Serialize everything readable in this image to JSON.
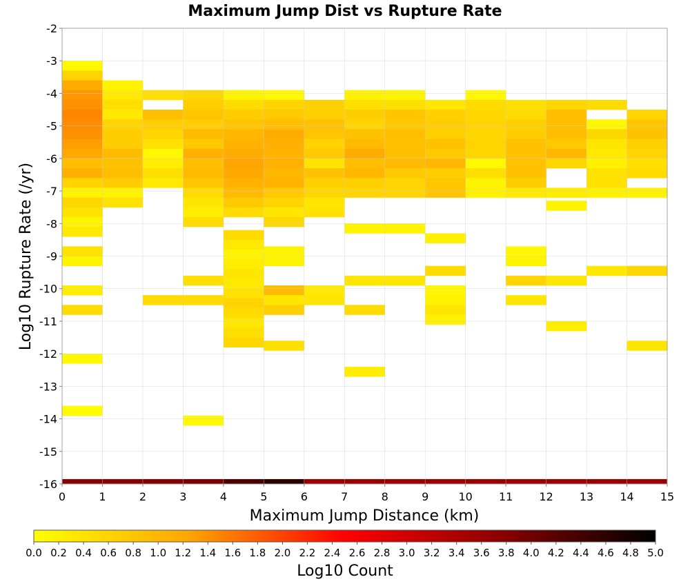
{
  "chart_data": {
    "type": "heatmap",
    "title": "Maximum Jump Dist vs Rupture Rate",
    "xlabel": "Maximum Jump Distance (km)",
    "ylabel": "Log10 Rupture Rate (/yr)",
    "colorbar_label": "Log10 Count",
    "xlim": [
      0,
      15
    ],
    "ylim": [
      -16,
      -2
    ],
    "x_ticks": [
      "0",
      "1",
      "2",
      "3",
      "4",
      "5",
      "6",
      "7",
      "8",
      "9",
      "10",
      "11",
      "12",
      "13",
      "14",
      "15"
    ],
    "y_ticks": [
      "-2",
      "-3",
      "-4",
      "-5",
      "-6",
      "-7",
      "-8",
      "-9",
      "-10",
      "-11",
      "-12",
      "-13",
      "-14",
      "-15",
      "-16"
    ],
    "colorbar_range": [
      0,
      5
    ],
    "colorbar_ticks": [
      "0.0",
      "0.2",
      "0.4",
      "0.6",
      "0.8",
      "1.0",
      "1.2",
      "1.4",
      "1.6",
      "1.8",
      "2.0",
      "2.2",
      "2.4",
      "2.6",
      "2.8",
      "3.0",
      "3.2",
      "3.4",
      "3.6",
      "3.8",
      "4.0",
      "4.2",
      "4.4",
      "4.6",
      "4.8",
      "5.0"
    ],
    "grid": true,
    "colormap": [
      "#ffff00",
      "#ffa500",
      "#ff0000",
      "#8b0000",
      "#000000"
    ],
    "bin_width_x": 1,
    "bin_height_y": 0.3,
    "cells": [
      {
        "x0": 0,
        "y0": -3.3,
        "v": 0.1
      },
      {
        "x0": 0,
        "y0": -3.6,
        "v": 0.6
      },
      {
        "x0": 0,
        "y0": -3.9,
        "v": 1.15
      },
      {
        "x0": 0,
        "y0": -4.2,
        "v": 1.35
      },
      {
        "x0": 0,
        "y0": -4.5,
        "v": 1.4
      },
      {
        "x0": 0,
        "y0": -4.8,
        "v": 1.5
      },
      {
        "x0": 0,
        "y0": -5.1,
        "v": 1.45
      },
      {
        "x0": 0,
        "y0": -5.4,
        "v": 1.4
      },
      {
        "x0": 0,
        "y0": -5.7,
        "v": 1.3
      },
      {
        "x0": 0,
        "y0": -6.0,
        "v": 1.2
      },
      {
        "x0": 0,
        "y0": -6.3,
        "v": 0.9
      },
      {
        "x0": 0,
        "y0": -6.6,
        "v": 1.1
      },
      {
        "x0": 0,
        "y0": -6.9,
        "v": 0.6
      },
      {
        "x0": 0,
        "y0": -7.2,
        "v": 0.15
      },
      {
        "x0": 0,
        "y0": -7.5,
        "v": 0.55
      },
      {
        "x0": 0,
        "y0": -7.8,
        "v": 0.4
      },
      {
        "x0": 0,
        "y0": -8.1,
        "v": 0.15
      },
      {
        "x0": 0,
        "y0": -8.4,
        "v": 0.3
      },
      {
        "x0": 0,
        "y0": -9.0,
        "v": 0.4
      },
      {
        "x0": 0,
        "y0": -9.3,
        "v": 0.15
      },
      {
        "x0": 0,
        "y0": -10.2,
        "v": 0.25
      },
      {
        "x0": 0,
        "y0": -10.8,
        "v": 0.5
      },
      {
        "x0": 0,
        "y0": -12.3,
        "v": 0.1
      },
      {
        "x0": 0,
        "y0": -13.9,
        "v": 0.05
      },
      {
        "x0": 1,
        "y0": -3.9,
        "v": 0.15
      },
      {
        "x0": 1,
        "y0": -4.2,
        "v": 0.3
      },
      {
        "x0": 1,
        "y0": -4.5,
        "v": 0.45
      },
      {
        "x0": 1,
        "y0": -4.8,
        "v": 0.3
      },
      {
        "x0": 1,
        "y0": -5.1,
        "v": 0.6
      },
      {
        "x0": 1,
        "y0": -5.4,
        "v": 0.7
      },
      {
        "x0": 1,
        "y0": -5.7,
        "v": 0.7
      },
      {
        "x0": 1,
        "y0": -6.0,
        "v": 0.95
      },
      {
        "x0": 1,
        "y0": -6.3,
        "v": 0.85
      },
      {
        "x0": 1,
        "y0": -6.6,
        "v": 0.9
      },
      {
        "x0": 1,
        "y0": -6.9,
        "v": 0.7
      },
      {
        "x0": 1,
        "y0": -7.2,
        "v": 0.15
      },
      {
        "x0": 1,
        "y0": -7.5,
        "v": 0.4
      },
      {
        "x0": 2,
        "y0": -4.2,
        "v": 0.45
      },
      {
        "x0": 2,
        "y0": -4.8,
        "v": 0.9
      },
      {
        "x0": 2,
        "y0": -5.1,
        "v": 0.7
      },
      {
        "x0": 2,
        "y0": -5.4,
        "v": 0.6
      },
      {
        "x0": 2,
        "y0": -5.7,
        "v": 0.4
      },
      {
        "x0": 2,
        "y0": -6.0,
        "v": 0.1
      },
      {
        "x0": 2,
        "y0": -6.3,
        "v": 0.25
      },
      {
        "x0": 2,
        "y0": -6.6,
        "v": 0.45
      },
      {
        "x0": 2,
        "y0": -6.9,
        "v": 0.3
      },
      {
        "x0": 2,
        "y0": -10.5,
        "v": 0.5
      },
      {
        "x0": 3,
        "y0": -4.2,
        "v": 0.55
      },
      {
        "x0": 3,
        "y0": -4.5,
        "v": 0.7
      },
      {
        "x0": 3,
        "y0": -4.8,
        "v": 0.8
      },
      {
        "x0": 3,
        "y0": -5.1,
        "v": 0.7
      },
      {
        "x0": 3,
        "y0": -5.4,
        "v": 0.95
      },
      {
        "x0": 3,
        "y0": -5.7,
        "v": 0.75
      },
      {
        "x0": 3,
        "y0": -6.0,
        "v": 1.1
      },
      {
        "x0": 3,
        "y0": -6.3,
        "v": 0.9
      },
      {
        "x0": 3,
        "y0": -6.6,
        "v": 0.95
      },
      {
        "x0": 3,
        "y0": -6.9,
        "v": 0.8
      },
      {
        "x0": 3,
        "y0": -7.2,
        "v": 0.5
      },
      {
        "x0": 3,
        "y0": -7.5,
        "v": 0.35
      },
      {
        "x0": 3,
        "y0": -7.8,
        "v": 0.25
      },
      {
        "x0": 3,
        "y0": -8.1,
        "v": 0.5
      },
      {
        "x0": 3,
        "y0": -9.9,
        "v": 0.45
      },
      {
        "x0": 3,
        "y0": -10.5,
        "v": 0.5
      },
      {
        "x0": 3,
        "y0": -14.2,
        "v": 0.1
      },
      {
        "x0": 4,
        "y0": -4.2,
        "v": 0.15
      },
      {
        "x0": 4,
        "y0": -4.5,
        "v": 0.5
      },
      {
        "x0": 4,
        "y0": -4.8,
        "v": 0.7
      },
      {
        "x0": 4,
        "y0": -5.1,
        "v": 0.8
      },
      {
        "x0": 4,
        "y0": -5.4,
        "v": 1.0
      },
      {
        "x0": 4,
        "y0": -5.7,
        "v": 1.05
      },
      {
        "x0": 4,
        "y0": -6.0,
        "v": 1.15
      },
      {
        "x0": 4,
        "y0": -6.3,
        "v": 1.25
      },
      {
        "x0": 4,
        "y0": -6.6,
        "v": 1.2
      },
      {
        "x0": 4,
        "y0": -6.9,
        "v": 1.05
      },
      {
        "x0": 4,
        "y0": -7.2,
        "v": 0.95
      },
      {
        "x0": 4,
        "y0": -7.5,
        "v": 0.75
      },
      {
        "x0": 4,
        "y0": -7.8,
        "v": 0.5
      },
      {
        "x0": 4,
        "y0": -8.5,
        "v": 0.5
      },
      {
        "x0": 4,
        "y0": -8.8,
        "v": 0.3
      },
      {
        "x0": 4,
        "y0": -9.1,
        "v": 0.15
      },
      {
        "x0": 4,
        "y0": -9.4,
        "v": 0.25
      },
      {
        "x0": 4,
        "y0": -9.7,
        "v": 0.35
      },
      {
        "x0": 4,
        "y0": -10.0,
        "v": 0.3
      },
      {
        "x0": 4,
        "y0": -10.3,
        "v": 0.4
      },
      {
        "x0": 4,
        "y0": -10.6,
        "v": 0.6
      },
      {
        "x0": 4,
        "y0": -10.9,
        "v": 0.5
      },
      {
        "x0": 4,
        "y0": -11.2,
        "v": 0.3
      },
      {
        "x0": 4,
        "y0": -11.5,
        "v": 0.45
      },
      {
        "x0": 4,
        "y0": -11.8,
        "v": 0.55
      },
      {
        "x0": 5,
        "y0": -4.2,
        "v": 0.1
      },
      {
        "x0": 5,
        "y0": -4.5,
        "v": 0.6
      },
      {
        "x0": 5,
        "y0": -4.8,
        "v": 0.75
      },
      {
        "x0": 5,
        "y0": -5.1,
        "v": 0.9
      },
      {
        "x0": 5,
        "y0": -5.4,
        "v": 1.15
      },
      {
        "x0": 5,
        "y0": -5.7,
        "v": 1.1
      },
      {
        "x0": 5,
        "y0": -6.0,
        "v": 1.05
      },
      {
        "x0": 5,
        "y0": -6.3,
        "v": 1.1
      },
      {
        "x0": 5,
        "y0": -6.6,
        "v": 1.0
      },
      {
        "x0": 5,
        "y0": -6.9,
        "v": 1.05
      },
      {
        "x0": 5,
        "y0": -7.2,
        "v": 0.75
      },
      {
        "x0": 5,
        "y0": -7.5,
        "v": 0.6
      },
      {
        "x0": 5,
        "y0": -7.8,
        "v": 0.35
      },
      {
        "x0": 5,
        "y0": -8.1,
        "v": 0.55
      },
      {
        "x0": 5,
        "y0": -9.0,
        "v": 0.15
      },
      {
        "x0": 5,
        "y0": -9.3,
        "v": 0.15
      },
      {
        "x0": 5,
        "y0": -10.2,
        "v": 0.95
      },
      {
        "x0": 5,
        "y0": -10.5,
        "v": 0.35
      },
      {
        "x0": 5,
        "y0": -10.8,
        "v": 0.65
      },
      {
        "x0": 5,
        "y0": -11.9,
        "v": 0.45
      },
      {
        "x0": 6,
        "y0": -4.5,
        "v": 0.65
      },
      {
        "x0": 6,
        "y0": -4.8,
        "v": 0.65
      },
      {
        "x0": 6,
        "y0": -5.1,
        "v": 0.85
      },
      {
        "x0": 6,
        "y0": -5.4,
        "v": 0.8
      },
      {
        "x0": 6,
        "y0": -5.7,
        "v": 0.6
      },
      {
        "x0": 6,
        "y0": -6.0,
        "v": 0.75
      },
      {
        "x0": 6,
        "y0": -6.3,
        "v": 0.4
      },
      {
        "x0": 6,
        "y0": -6.6,
        "v": 0.85
      },
      {
        "x0": 6,
        "y0": -6.9,
        "v": 0.65
      },
      {
        "x0": 6,
        "y0": -7.2,
        "v": 0.55
      },
      {
        "x0": 6,
        "y0": -7.5,
        "v": 0.35
      },
      {
        "x0": 6,
        "y0": -7.8,
        "v": 0.4
      },
      {
        "x0": 6,
        "y0": -10.2,
        "v": 0.3
      },
      {
        "x0": 6,
        "y0": -10.5,
        "v": 0.35
      },
      {
        "x0": 7,
        "y0": -4.2,
        "v": 0.2
      },
      {
        "x0": 7,
        "y0": -4.5,
        "v": 0.45
      },
      {
        "x0": 7,
        "y0": -4.8,
        "v": 0.7
      },
      {
        "x0": 7,
        "y0": -5.1,
        "v": 0.6
      },
      {
        "x0": 7,
        "y0": -5.4,
        "v": 0.85
      },
      {
        "x0": 7,
        "y0": -5.7,
        "v": 0.95
      },
      {
        "x0": 7,
        "y0": -6.0,
        "v": 1.15
      },
      {
        "x0": 7,
        "y0": -6.3,
        "v": 0.9
      },
      {
        "x0": 7,
        "y0": -6.6,
        "v": 1.0
      },
      {
        "x0": 7,
        "y0": -6.9,
        "v": 0.65
      },
      {
        "x0": 7,
        "y0": -7.2,
        "v": 0.6
      },
      {
        "x0": 7,
        "y0": -8.3,
        "v": 0.15
      },
      {
        "x0": 7,
        "y0": -9.9,
        "v": 0.35
      },
      {
        "x0": 7,
        "y0": -10.8,
        "v": 0.5
      },
      {
        "x0": 7,
        "y0": -12.7,
        "v": 0.25
      },
      {
        "x0": 8,
        "y0": -4.2,
        "v": 0.15
      },
      {
        "x0": 8,
        "y0": -4.5,
        "v": 0.45
      },
      {
        "x0": 8,
        "y0": -4.8,
        "v": 0.8
      },
      {
        "x0": 8,
        "y0": -5.1,
        "v": 0.75
      },
      {
        "x0": 8,
        "y0": -5.4,
        "v": 0.9
      },
      {
        "x0": 8,
        "y0": -5.7,
        "v": 0.85
      },
      {
        "x0": 8,
        "y0": -6.0,
        "v": 0.9
      },
      {
        "x0": 8,
        "y0": -6.3,
        "v": 0.95
      },
      {
        "x0": 8,
        "y0": -6.6,
        "v": 0.75
      },
      {
        "x0": 8,
        "y0": -6.9,
        "v": 0.6
      },
      {
        "x0": 8,
        "y0": -7.2,
        "v": 0.6
      },
      {
        "x0": 8,
        "y0": -8.3,
        "v": 0.15
      },
      {
        "x0": 8,
        "y0": -9.9,
        "v": 0.35
      },
      {
        "x0": 9,
        "y0": -4.5,
        "v": 0.35
      },
      {
        "x0": 9,
        "y0": -4.8,
        "v": 0.65
      },
      {
        "x0": 9,
        "y0": -5.1,
        "v": 0.7
      },
      {
        "x0": 9,
        "y0": -5.4,
        "v": 0.65
      },
      {
        "x0": 9,
        "y0": -5.7,
        "v": 0.85
      },
      {
        "x0": 9,
        "y0": -6.0,
        "v": 0.75
      },
      {
        "x0": 9,
        "y0": -6.3,
        "v": 1.0
      },
      {
        "x0": 9,
        "y0": -6.6,
        "v": 0.7
      },
      {
        "x0": 9,
        "y0": -6.9,
        "v": 0.8
      },
      {
        "x0": 9,
        "y0": -7.2,
        "v": 0.8
      },
      {
        "x0": 9,
        "y0": -8.6,
        "v": 0.2
      },
      {
        "x0": 9,
        "y0": -9.6,
        "v": 0.5
      },
      {
        "x0": 9,
        "y0": -10.2,
        "v": 0.1
      },
      {
        "x0": 9,
        "y0": -10.5,
        "v": 0.15
      },
      {
        "x0": 9,
        "y0": -10.8,
        "v": 0.35
      },
      {
        "x0": 9,
        "y0": -11.1,
        "v": 0.2
      },
      {
        "x0": 10,
        "y0": -4.2,
        "v": 0.1
      },
      {
        "x0": 10,
        "y0": -4.5,
        "v": 0.5
      },
      {
        "x0": 10,
        "y0": -4.8,
        "v": 0.55
      },
      {
        "x0": 10,
        "y0": -5.1,
        "v": 0.6
      },
      {
        "x0": 10,
        "y0": -5.4,
        "v": 0.55
      },
      {
        "x0": 10,
        "y0": -5.7,
        "v": 0.6
      },
      {
        "x0": 10,
        "y0": -6.0,
        "v": 0.55
      },
      {
        "x0": 10,
        "y0": -6.3,
        "v": 0.1
      },
      {
        "x0": 10,
        "y0": -6.6,
        "v": 0.45
      },
      {
        "x0": 10,
        "y0": -6.9,
        "v": 0.15
      },
      {
        "x0": 10,
        "y0": -7.2,
        "v": 0.2
      },
      {
        "x0": 11,
        "y0": -4.5,
        "v": 0.45
      },
      {
        "x0": 11,
        "y0": -4.8,
        "v": 0.5
      },
      {
        "x0": 11,
        "y0": -5.1,
        "v": 0.65
      },
      {
        "x0": 11,
        "y0": -5.4,
        "v": 0.7
      },
      {
        "x0": 11,
        "y0": -5.7,
        "v": 0.85
      },
      {
        "x0": 11,
        "y0": -6.0,
        "v": 0.85
      },
      {
        "x0": 11,
        "y0": -6.3,
        "v": 0.85
      },
      {
        "x0": 11,
        "y0": -6.6,
        "v": 0.85
      },
      {
        "x0": 11,
        "y0": -6.9,
        "v": 0.7
      },
      {
        "x0": 11,
        "y0": -7.2,
        "v": 0.3
      },
      {
        "x0": 11,
        "y0": -9.0,
        "v": 0.1
      },
      {
        "x0": 11,
        "y0": -9.3,
        "v": 0.15
      },
      {
        "x0": 11,
        "y0": -9.9,
        "v": 0.6
      },
      {
        "x0": 11,
        "y0": -10.5,
        "v": 0.35
      },
      {
        "x0": 12,
        "y0": -4.5,
        "v": 0.55
      },
      {
        "x0": 12,
        "y0": -4.8,
        "v": 0.9
      },
      {
        "x0": 12,
        "y0": -5.1,
        "v": 0.9
      },
      {
        "x0": 12,
        "y0": -5.4,
        "v": 0.9
      },
      {
        "x0": 12,
        "y0": -5.7,
        "v": 0.75
      },
      {
        "x0": 12,
        "y0": -6.0,
        "v": 1.0
      },
      {
        "x0": 12,
        "y0": -6.3,
        "v": 0.55
      },
      {
        "x0": 12,
        "y0": -7.2,
        "v": 0.25
      },
      {
        "x0": 12,
        "y0": -7.6,
        "v": 0.15
      },
      {
        "x0": 12,
        "y0": -9.9,
        "v": 0.35
      },
      {
        "x0": 12,
        "y0": -11.3,
        "v": 0.25
      },
      {
        "x0": 13,
        "y0": -4.5,
        "v": 0.5
      },
      {
        "x0": 13,
        "y0": -5.1,
        "v": 0.1
      },
      {
        "x0": 13,
        "y0": -5.4,
        "v": 0.55
      },
      {
        "x0": 13,
        "y0": -5.7,
        "v": 0.35
      },
      {
        "x0": 13,
        "y0": -6.0,
        "v": 0.3
      },
      {
        "x0": 13,
        "y0": -6.3,
        "v": 0.2
      },
      {
        "x0": 13,
        "y0": -6.6,
        "v": 0.4
      },
      {
        "x0": 13,
        "y0": -6.9,
        "v": 0.4
      },
      {
        "x0": 13,
        "y0": -7.2,
        "v": 0.2
      },
      {
        "x0": 13,
        "y0": -9.6,
        "v": 0.3
      },
      {
        "x0": 14,
        "y0": -4.8,
        "v": 0.6
      },
      {
        "x0": 14,
        "y0": -5.1,
        "v": 0.8
      },
      {
        "x0": 14,
        "y0": -5.4,
        "v": 0.85
      },
      {
        "x0": 14,
        "y0": -5.7,
        "v": 0.65
      },
      {
        "x0": 14,
        "y0": -6.0,
        "v": 0.6
      },
      {
        "x0": 14,
        "y0": -6.3,
        "v": 0.45
      },
      {
        "x0": 14,
        "y0": -6.6,
        "v": 0.5
      },
      {
        "x0": 14,
        "y0": -7.2,
        "v": 0.2
      },
      {
        "x0": 14,
        "y0": -9.6,
        "v": 0.55
      },
      {
        "x0": 14,
        "y0": -11.9,
        "v": 0.35
      }
    ],
    "bottom_row": {
      "y0": -16,
      "y1": -15.85,
      "values": [
        3.75,
        3.75,
        3.8,
        3.9,
        4.35,
        4.65,
        3.6,
        3.6,
        3.6,
        3.6,
        3.6,
        3.6,
        3.6,
        3.6,
        3.6
      ]
    }
  }
}
